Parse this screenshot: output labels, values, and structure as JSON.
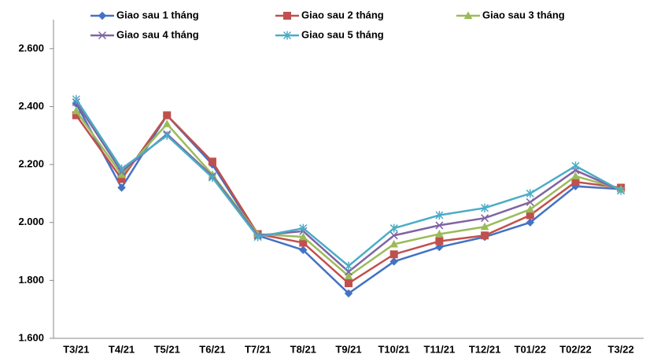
{
  "chart_data": {
    "type": "line",
    "categories": [
      "T3/21",
      "T4/21",
      "T5/21",
      "T6/21",
      "T7/21",
      "T8/21",
      "T9/21",
      "T10/21",
      "T11/21",
      "T12/21",
      "T01/22",
      "T02/22",
      "T3/22"
    ],
    "series": [
      {
        "name": "Giao sau 1 tháng",
        "color": "#4472c4",
        "marker": "diamond",
        "values": [
          2410,
          2120,
          2370,
          2200,
          1955,
          1905,
          1755,
          1865,
          1915,
          1950,
          2000,
          2125,
          2115
        ]
      },
      {
        "name": "Giao sau 2 tháng",
        "color": "#c0504d",
        "marker": "square",
        "values": [
          2370,
          2150,
          2370,
          2210,
          1960,
          1930,
          1790,
          1890,
          1935,
          1955,
          2025,
          2140,
          2120
        ]
      },
      {
        "name": "Giao sau 3 tháng",
        "color": "#9bbb59",
        "marker": "triangle",
        "values": [
          2385,
          2165,
          2340,
          2165,
          1960,
          1950,
          1815,
          1925,
          1960,
          1985,
          2045,
          2160,
          2115
        ]
      },
      {
        "name": "Giao sau 4 tháng",
        "color": "#8064a2",
        "marker": "x",
        "values": [
          2415,
          2175,
          2305,
          2160,
          1955,
          1970,
          1830,
          1955,
          1990,
          2015,
          2070,
          2180,
          2110
        ]
      },
      {
        "name": "Giao sau 5 tháng",
        "color": "#4bacc6",
        "marker": "star",
        "values": [
          2425,
          2185,
          2300,
          2155,
          1950,
          1980,
          1850,
          1980,
          2025,
          2050,
          2100,
          2195,
          2110
        ]
      }
    ],
    "ylim": [
      1600,
      2700
    ],
    "yticks": [
      {
        "value": 1600,
        "label": "1.600"
      },
      {
        "value": 1800,
        "label": "1.800"
      },
      {
        "value": 2000,
        "label": "2.000"
      },
      {
        "value": 2200,
        "label": "2.200"
      },
      {
        "value": 2400,
        "label": "2.400"
      },
      {
        "value": 2600,
        "label": "2.600"
      }
    ],
    "grid": false,
    "legend": "top"
  }
}
